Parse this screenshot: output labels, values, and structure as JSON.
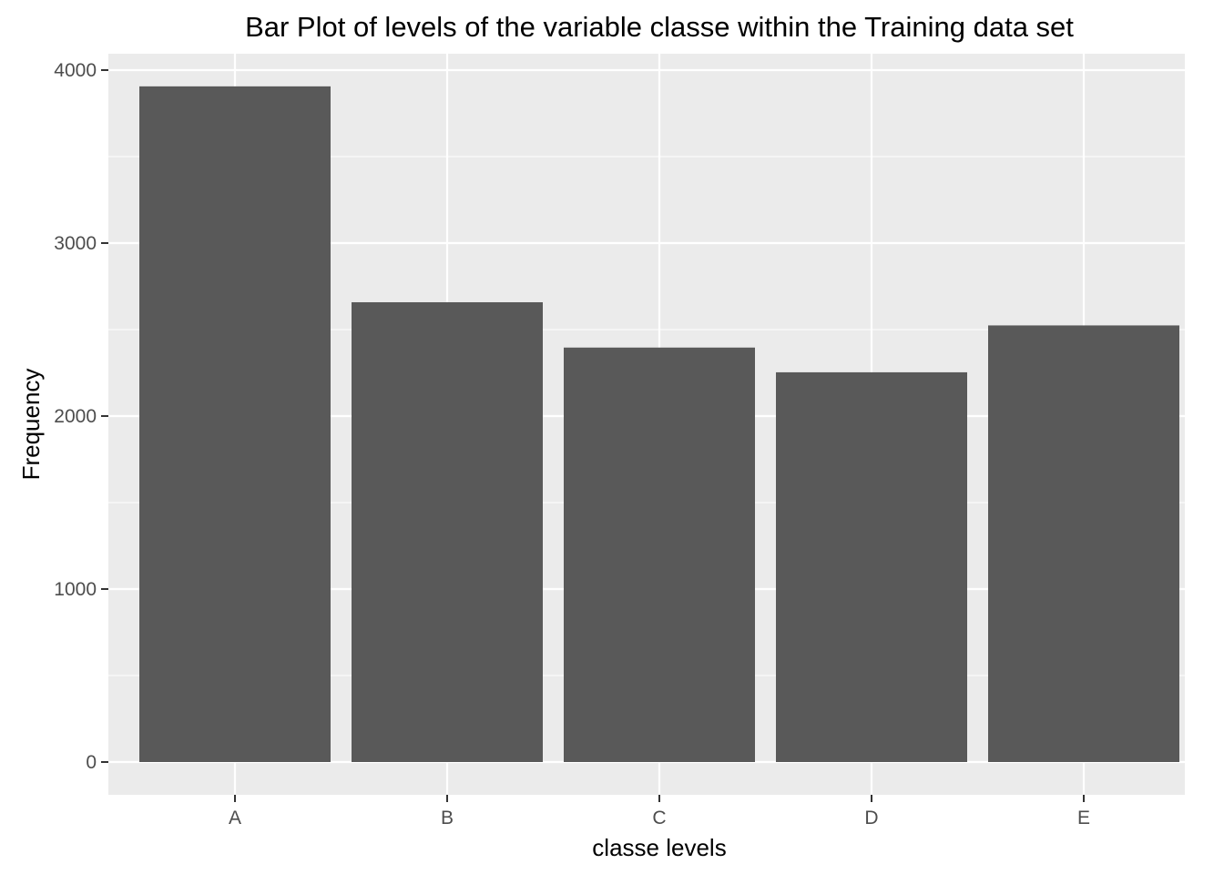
{
  "chart_data": {
    "type": "bar",
    "title": "Bar Plot of levels of the variable classe within the Training data set",
    "xlabel": "classe levels",
    "ylabel": "Frequency",
    "categories": [
      "A",
      "B",
      "C",
      "D",
      "E"
    ],
    "values": [
      3906,
      2658,
      2396,
      2253,
      2524
    ],
    "ylim": [
      0,
      4000
    ],
    "yticks": [
      0,
      1000,
      2000,
      3000,
      4000
    ],
    "grid": true,
    "legend": "none",
    "colors": {
      "bar": "#595959",
      "panel_background": "#ebebeb",
      "grid": "#ffffff",
      "tick_text": "#4d4d4d",
      "text": "#000000"
    }
  }
}
